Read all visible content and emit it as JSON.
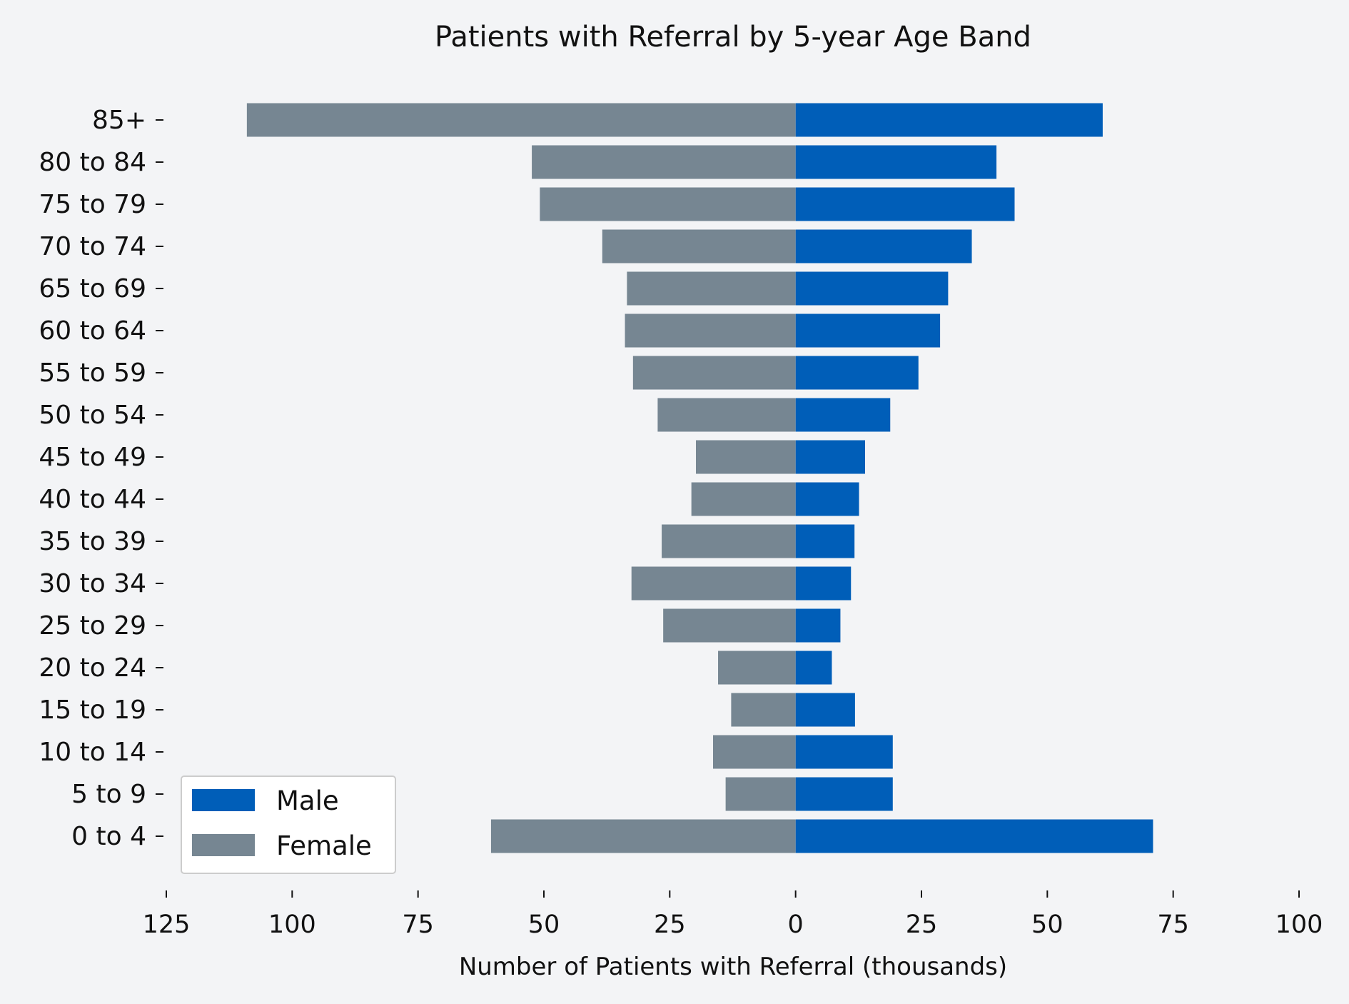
{
  "chart_data": {
    "type": "bar",
    "orientation": "horizontal",
    "layout": "population-pyramid",
    "title": "Patients with Referral by 5-year Age Band",
    "xlabel": "Number of Patients with Referral (thousands)",
    "ylabel": "",
    "categories": [
      "0 to 4",
      "5 to 9",
      "10 to 14",
      "15 to 19",
      "20 to 24",
      "25 to 29",
      "30 to 34",
      "35 to 39",
      "40 to 44",
      "45 to 49",
      "50 to 54",
      "55 to 59",
      "60 to 64",
      "65 to 69",
      "70 to 74",
      "75 to 79",
      "80 to 84",
      "85+"
    ],
    "series": [
      {
        "name": "Male",
        "side": "right",
        "color": "#005eb8",
        "values": [
          71.0,
          19.3,
          19.3,
          11.8,
          7.2,
          8.9,
          11.0,
          11.7,
          12.6,
          13.8,
          18.8,
          24.4,
          28.7,
          30.3,
          35.0,
          43.5,
          39.9,
          61.0
        ]
      },
      {
        "name": "Female",
        "side": "left",
        "color": "#768692",
        "values": [
          60.5,
          13.9,
          16.4,
          12.8,
          15.4,
          26.3,
          32.6,
          26.6,
          20.7,
          19.8,
          27.4,
          32.3,
          33.9,
          33.5,
          38.4,
          50.8,
          52.4,
          109.0
        ]
      }
    ],
    "xlim": [
      -125,
      100
    ],
    "xticks": [
      -125,
      -100,
      -75,
      -50,
      -25,
      0,
      25,
      50,
      75,
      100
    ],
    "xtick_labels": [
      "125",
      "100",
      "75",
      "50",
      "25",
      "0",
      "25",
      "50",
      "75",
      "100"
    ],
    "grid": false,
    "legend_position": "lower-left"
  }
}
